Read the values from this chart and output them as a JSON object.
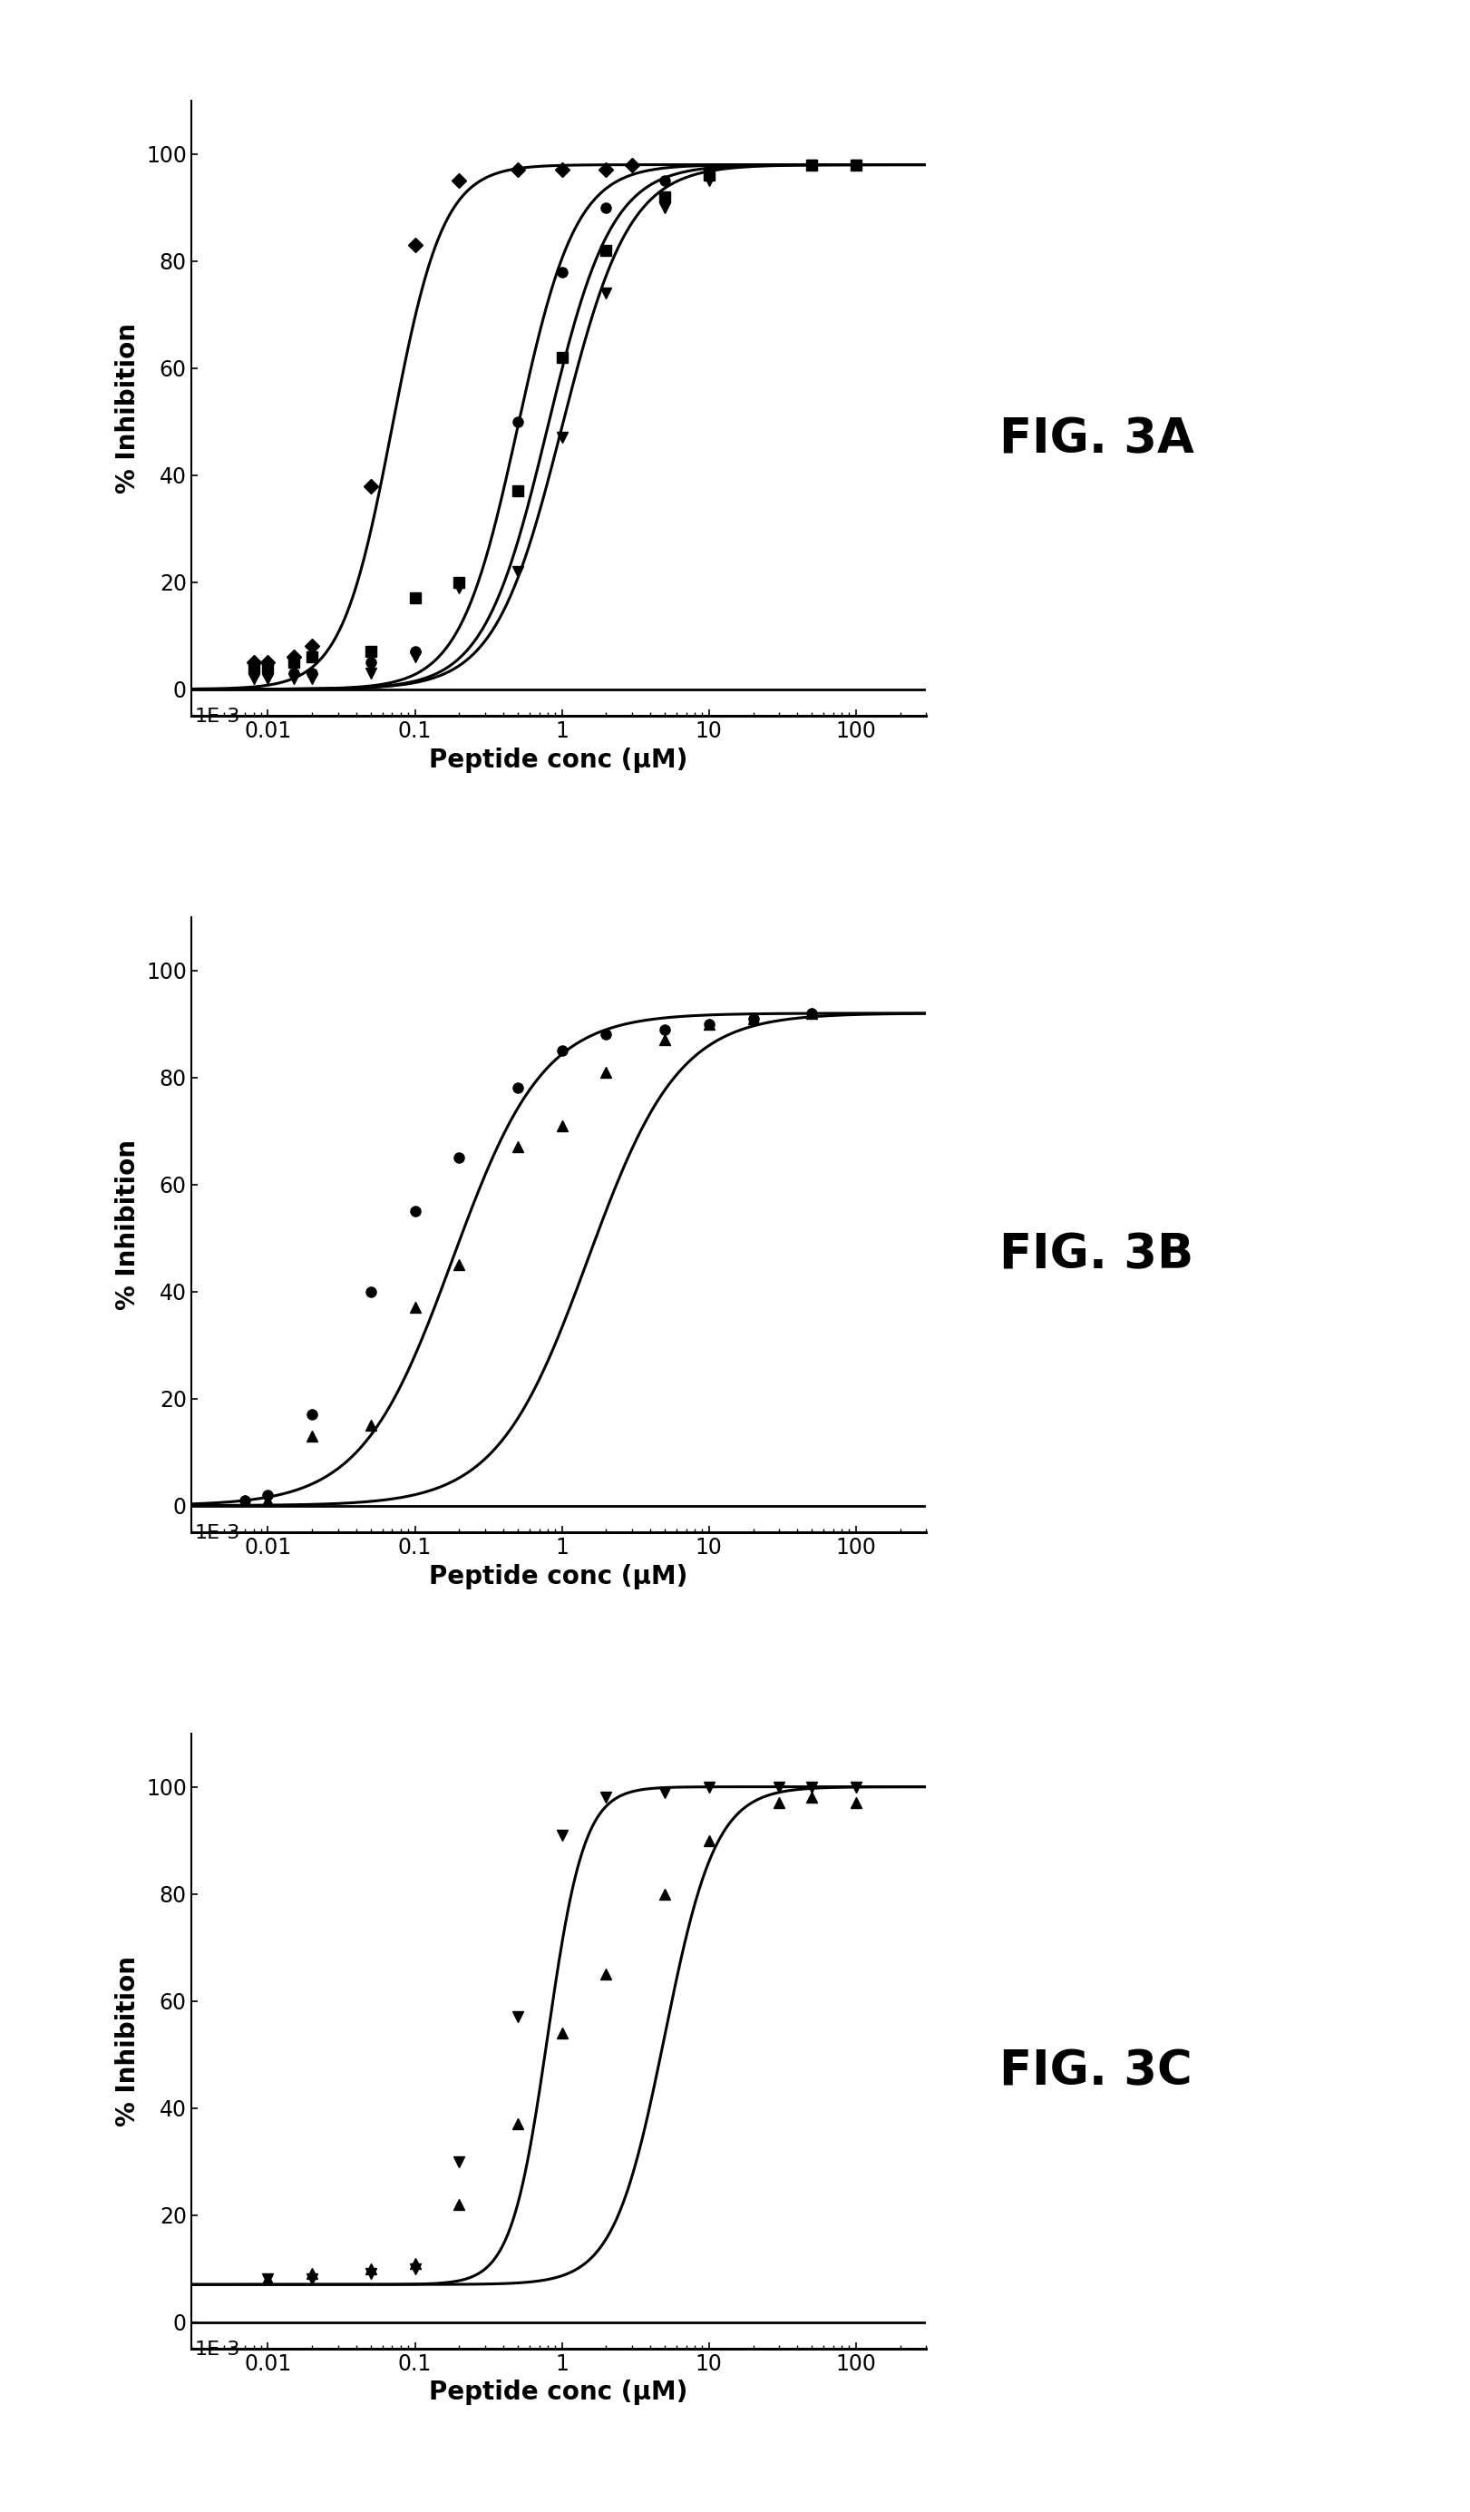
{
  "fig_width": 16.21,
  "fig_height": 27.69,
  "background_color": "#ffffff",
  "panels": [
    {
      "label": "FIG. 3A",
      "series": [
        {
          "marker": "D",
          "markersize": 8,
          "color": "#000000",
          "EC50": 0.07,
          "hill": 2.5,
          "bottom": 0,
          "top": 98,
          "x_data": [
            0.008,
            0.01,
            0.015,
            0.02,
            0.05,
            0.1,
            0.2,
            0.5,
            1,
            2,
            3
          ],
          "y_data": [
            5,
            5,
            6,
            8,
            38,
            83,
            95,
            97,
            97,
            97,
            98
          ]
        },
        {
          "marker": "o",
          "markersize": 8,
          "color": "#000000",
          "EC50": 0.5,
          "hill": 2.2,
          "bottom": 0,
          "top": 98,
          "x_data": [
            0.008,
            0.01,
            0.015,
            0.02,
            0.05,
            0.1,
            0.2,
            0.5,
            1,
            2,
            5,
            10,
            50,
            100
          ],
          "y_data": [
            3,
            3,
            3,
            3,
            5,
            7,
            20,
            50,
            78,
            90,
            95,
            97,
            98,
            98
          ]
        },
        {
          "marker": "s",
          "markersize": 8,
          "color": "#000000",
          "EC50": 0.8,
          "hill": 2.0,
          "bottom": 0,
          "top": 98,
          "x_data": [
            0.008,
            0.01,
            0.015,
            0.02,
            0.05,
            0.1,
            0.2,
            0.5,
            1,
            2,
            5,
            10,
            50,
            100
          ],
          "y_data": [
            4,
            4,
            5,
            6,
            7,
            17,
            20,
            37,
            62,
            82,
            92,
            96,
            98,
            98
          ]
        },
        {
          "marker": "v",
          "markersize": 8,
          "color": "#000000",
          "EC50": 1.0,
          "hill": 1.9,
          "bottom": 0,
          "top": 98,
          "x_data": [
            0.008,
            0.01,
            0.015,
            0.02,
            0.05,
            0.1,
            0.2,
            0.5,
            1,
            2,
            5,
            10,
            50,
            100
          ],
          "y_data": [
            2,
            2,
            2,
            2,
            3,
            6,
            19,
            22,
            47,
            74,
            90,
            95,
            98,
            98
          ]
        }
      ],
      "xlim_left": 0.003,
      "xlim_right": 300,
      "ylim": [
        -5,
        110
      ],
      "yticks": [
        0,
        20,
        40,
        60,
        80,
        100
      ],
      "xtick_labels": [
        "0.01",
        "0.1",
        "1",
        "10",
        "100"
      ],
      "xtick_vals": [
        0.01,
        0.1,
        1,
        10,
        100
      ],
      "ylabel": "% Inhibition",
      "xlabel": "Peptide conc (μM)"
    },
    {
      "label": "FIG. 3B",
      "series": [
        {
          "marker": "o",
          "markersize": 8,
          "color": "#000000",
          "EC50": 0.18,
          "hill": 1.4,
          "bottom": 0,
          "top": 92,
          "x_data": [
            0.007,
            0.01,
            0.02,
            0.05,
            0.1,
            0.2,
            0.5,
            1,
            2,
            5,
            10,
            20,
            50
          ],
          "y_data": [
            1,
            2,
            17,
            40,
            55,
            65,
            78,
            85,
            88,
            89,
            90,
            91,
            92
          ]
        },
        {
          "marker": "^",
          "markersize": 8,
          "color": "#000000",
          "EC50": 1.5,
          "hill": 1.4,
          "bottom": 0,
          "top": 92,
          "x_data": [
            0.007,
            0.01,
            0.02,
            0.05,
            0.1,
            0.2,
            0.5,
            1,
            2,
            5,
            10,
            20,
            50
          ],
          "y_data": [
            1,
            1,
            13,
            15,
            37,
            45,
            67,
            71,
            81,
            87,
            90,
            91,
            92
          ]
        }
      ],
      "xlim_left": 0.003,
      "xlim_right": 300,
      "ylim": [
        -5,
        110
      ],
      "yticks": [
        0,
        20,
        40,
        60,
        80,
        100
      ],
      "xtick_labels": [
        "0.01",
        "0.1",
        "1",
        "10",
        "100"
      ],
      "xtick_vals": [
        0.01,
        0.1,
        1,
        10,
        100
      ],
      "ylabel": "% Inhibition",
      "xlabel": "Peptide conc (μM)"
    },
    {
      "label": "FIG. 3C",
      "series": [
        {
          "marker": "v",
          "markersize": 8,
          "color": "#000000",
          "EC50": 0.8,
          "hill": 3.5,
          "bottom": 7,
          "top": 100,
          "x_data": [
            0.01,
            0.02,
            0.05,
            0.1,
            0.2,
            0.5,
            1,
            2,
            5,
            10,
            30,
            50,
            100
          ],
          "y_data": [
            8,
            8,
            9,
            10,
            30,
            57,
            91,
            98,
            99,
            100,
            100,
            100,
            100
          ]
        },
        {
          "marker": "^",
          "markersize": 8,
          "color": "#000000",
          "EC50": 5.0,
          "hill": 2.5,
          "bottom": 7,
          "top": 100,
          "x_data": [
            0.01,
            0.02,
            0.05,
            0.1,
            0.2,
            0.5,
            1,
            2,
            5,
            10,
            30,
            50,
            100
          ],
          "y_data": [
            8,
            9,
            10,
            11,
            22,
            37,
            54,
            65,
            80,
            90,
            97,
            98,
            97
          ]
        }
      ],
      "xlim_left": 0.003,
      "xlim_right": 300,
      "ylim": [
        -5,
        110
      ],
      "yticks": [
        0,
        20,
        40,
        60,
        80,
        100
      ],
      "xtick_labels": [
        "0.01",
        "0.1",
        "1",
        "10",
        "100"
      ],
      "xtick_vals": [
        0.01,
        0.1,
        1,
        10,
        100
      ],
      "ylabel": "% Inhibition",
      "xlabel": "Peptide conc (μM)"
    }
  ],
  "label_fontsize": 38,
  "axis_label_fontsize": 20,
  "tick_fontsize": 17,
  "line_width": 2.2
}
